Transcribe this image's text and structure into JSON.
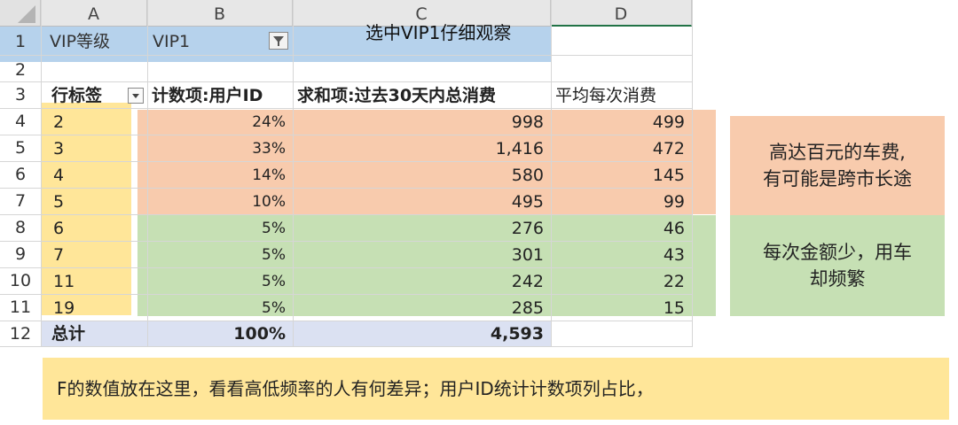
{
  "columns": [
    "A",
    "B",
    "C",
    "D"
  ],
  "row_numbers": [
    "1",
    "2",
    "3",
    "4",
    "5",
    "6",
    "7",
    "8",
    "9",
    "10",
    "11",
    "12"
  ],
  "filter": {
    "label": "VIP等级",
    "value": "VIP1"
  },
  "callout_top": "选中VIP1仔细观察",
  "headers": {
    "row_label": "行标签",
    "count": "计数项:用户ID",
    "sum": "求和项:过去30天内总消费",
    "avg": "平均每次消费"
  },
  "rows": [
    {
      "label": "2",
      "pct": "24%",
      "total": "998",
      "avg": "499"
    },
    {
      "label": "3",
      "pct": "33%",
      "total": "1,416",
      "avg": "472"
    },
    {
      "label": "4",
      "pct": "14%",
      "total": "580",
      "avg": "145"
    },
    {
      "label": "5",
      "pct": "10%",
      "total": "495",
      "avg": "99"
    },
    {
      "label": "6",
      "pct": "5%",
      "total": "276",
      "avg": "46"
    },
    {
      "label": "7",
      "pct": "5%",
      "total": "301",
      "avg": "43"
    },
    {
      "label": "11",
      "pct": "5%",
      "total": "242",
      "avg": "22"
    },
    {
      "label": "19",
      "pct": "5%",
      "total": "285",
      "avg": "15"
    }
  ],
  "total_row": {
    "label": "总计",
    "pct": "100%",
    "total": "4,593"
  },
  "note_orange": {
    "line1": "高达百元的车费,",
    "line2": "有可能是跨市长途"
  },
  "note_green": {
    "line1": "每次金额少，用车",
    "line2": "却频繁"
  },
  "bottom_note": "F的数值放在这里，看看高低频率的人有何差异；用户ID统计计数项列占比，",
  "colors": {
    "orange": "#f8cbad",
    "green": "#c6e0b4",
    "yellow": "#ffe699",
    "blue": "#9dc3e6",
    "header_blue": "#dbe1f2"
  }
}
